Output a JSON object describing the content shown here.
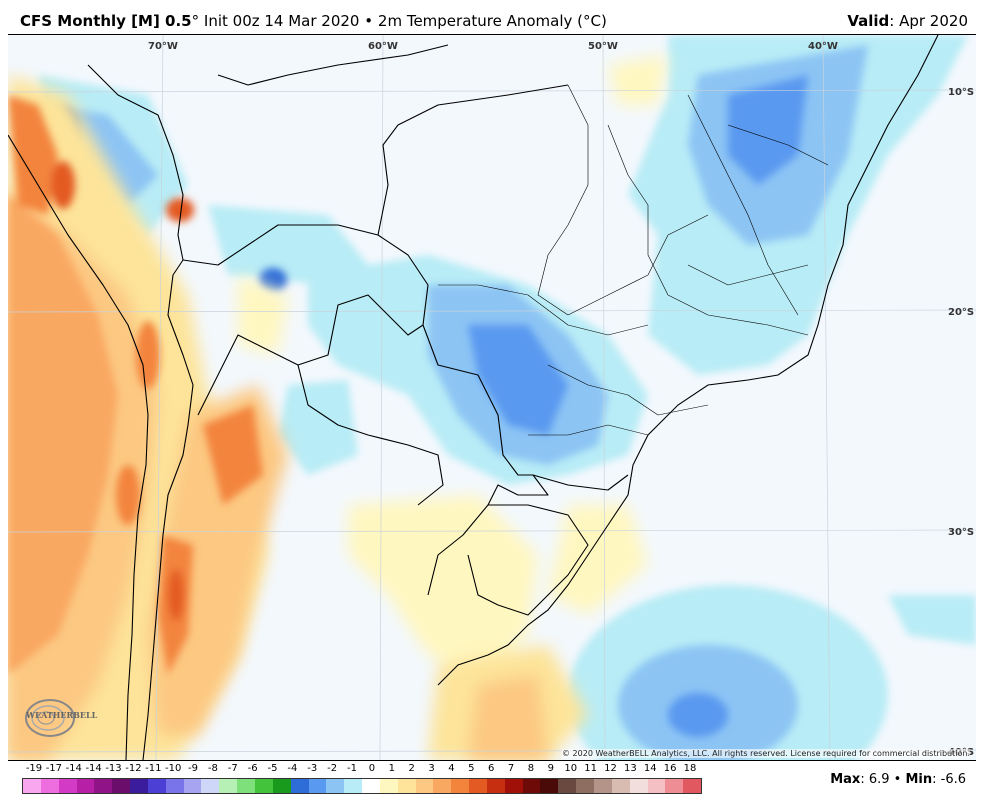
{
  "header": {
    "model": "CFS Monthly [M] 0.5",
    "degree": "°",
    "init": "Init 00z 14 Mar 2020",
    "bullet": "•",
    "variable": "2m Temperature Anomaly (°C)",
    "valid_label": "Valid",
    "valid_value": "Apr 2020"
  },
  "map": {
    "lon_labels": [
      "70°W",
      "60°W",
      "50°W",
      "40°W"
    ],
    "lat_labels": [
      "10°S",
      "20°S",
      "30°S",
      "40°S"
    ],
    "copyright": "© 2020 WeatherBELL Analytics, LLC. All rights reserved. License required for commercial distribution.",
    "logo_text": "WEATHERBELL"
  },
  "legend": {
    "labels": [
      "-19",
      "-17",
      "-14",
      "-14",
      "-13",
      "-12",
      "-11",
      "-10",
      "-9",
      "-8",
      "-7",
      "-6",
      "-5",
      "-4",
      "-3",
      "-2",
      "-1",
      "0",
      "1",
      "2",
      "3",
      "4",
      "5",
      "6",
      "7",
      "8",
      "9",
      "10",
      "11",
      "12",
      "13",
      "14",
      "16",
      "18"
    ],
    "colors": [
      "#f9a8f0",
      "#ee6ee0",
      "#d33ac6",
      "#b61fa6",
      "#901488",
      "#6b0d6a",
      "#3b1c9c",
      "#4b3fd6",
      "#7a74ea",
      "#a7a4f2",
      "#cfd7f8",
      "#b6f0b4",
      "#7ee07a",
      "#43c33c",
      "#1a9a1c",
      "#2e6cd8",
      "#5a99f0",
      "#8cc4f4",
      "#b8ecf6",
      "#ffffff",
      "#fff7c0",
      "#fde49a",
      "#fcc882",
      "#f9a862",
      "#f3843c",
      "#e35a22",
      "#c63010",
      "#a01008",
      "#6e0a08",
      "#4a0a08",
      "#6a4a40",
      "#8f6e62",
      "#b49488",
      "#d8bcb2",
      "#f3dede",
      "#f4c0c4",
      "#ee8e94",
      "#e25860"
    ]
  },
  "maxmin": {
    "max_label": "Max",
    "max_value": "6.9",
    "min_label": "Min",
    "min_value": "-6.6"
  }
}
